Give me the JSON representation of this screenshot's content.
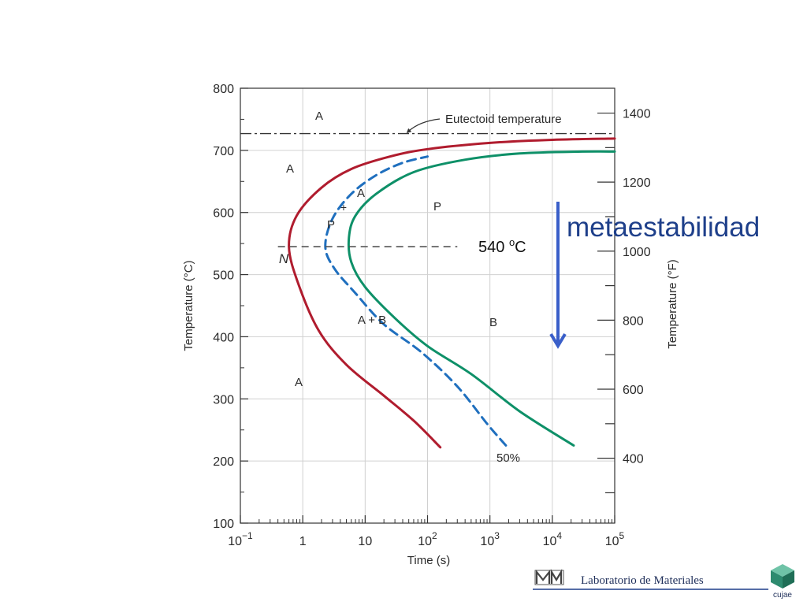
{
  "chart_data": {
    "type": "line",
    "title": "",
    "xlabel": "Time (s)",
    "ylabel_left": "Temperature (°C)",
    "ylabel_right": "Temperature (°F)",
    "x_scale": "log",
    "xlim": [
      0.1,
      100000
    ],
    "ylim": [
      100,
      800
    ],
    "x_ticks": [
      {
        "v": 0.1,
        "base": "10",
        "exp": "−1"
      },
      {
        "v": 1,
        "base": "1",
        "exp": ""
      },
      {
        "v": 10,
        "base": "10",
        "exp": ""
      },
      {
        "v": 100,
        "base": "10",
        "exp": "2"
      },
      {
        "v": 1000,
        "base": "10",
        "exp": "3"
      },
      {
        "v": 10000,
        "base": "10",
        "exp": "4"
      },
      {
        "v": 100000,
        "base": "10",
        "exp": "5"
      }
    ],
    "y_ticks_left": [
      100,
      200,
      300,
      400,
      500,
      600,
      700,
      800
    ],
    "y_ticks_right": [
      400,
      600,
      800,
      1000,
      1200,
      1400
    ],
    "grid": true,
    "series": [
      {
        "name": "",
        "color": "#b01c2e",
        "style": "solid",
        "x": [
          160,
          60,
          20,
          5,
          1.8,
          0.85,
          0.6,
          0.8,
          2,
          6,
          25,
          100,
          1000,
          10000,
          100000
        ],
        "y": [
          222,
          265,
          305,
          355,
          410,
          485,
          545,
          595,
          640,
          670,
          690,
          702,
          712,
          717,
          719
        ]
      },
      {
        "name": "",
        "color": "#1f6fbe",
        "style": "dashed",
        "x": [
          1800,
          900,
          300,
          80,
          20,
          7,
          3.2,
          2.3,
          3,
          6,
          15,
          40,
          100
        ],
        "y": [
          225,
          260,
          320,
          375,
          420,
          470,
          510,
          545,
          590,
          630,
          660,
          680,
          690
        ]
      },
      {
        "name": "",
        "color": "#0e9068",
        "style": "solid",
        "x": [
          22000,
          3000,
          500,
          100,
          30,
          10,
          6,
          5.5,
          7,
          15,
          60,
          400,
          3000,
          30000,
          100000
        ],
        "y": [
          225,
          280,
          340,
          385,
          430,
          480,
          520,
          560,
          595,
          630,
          665,
          685,
          695,
          698,
          698
        ]
      }
    ],
    "eutectoid_temperature": 727,
    "eutectoid_label": "Eutectoid temperature",
    "isotherm_540": {
      "y": 545,
      "label": "540 °C"
    },
    "region_labels": {
      "a_top": "A",
      "a_left_upper": "A",
      "a_left_lower": "A",
      "p_right": "P",
      "p_left": "P",
      "plus": "+",
      "a_small": "A",
      "a_plus_b": "A + B",
      "b": "B",
      "n": "N",
      "fifty_percent": "50%"
    },
    "annotation_540": {
      "number": "540 ",
      "superscript": "o",
      "unit": "C"
    },
    "metaestabilidad_label": "metaestabilidad",
    "arrow_color": "#3a5fc9"
  },
  "footer": {
    "logo_left_text": "LM",
    "title": "Laboratorio de Materiales",
    "logo_right_text": "cujae"
  },
  "colors": {
    "eutectoid_line": "#333333",
    "axes": "#333333",
    "grid": "#d0d0d0",
    "text": "#2a2a2a",
    "metaestabilidad": "#1e3f8a",
    "footer_line": "#1e3f8a",
    "footer_logo_green": "#2e8b6f"
  }
}
